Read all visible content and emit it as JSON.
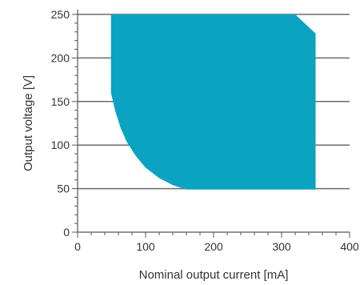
{
  "chart_data": {
    "type": "area",
    "xlabel": "Nominal output current [mA]",
    "ylabel": "Output voltage [V]",
    "xlim": [
      0,
      400
    ],
    "ylim": [
      0,
      250
    ],
    "x_ticks": [
      0,
      100,
      200,
      300,
      400
    ],
    "y_ticks": [
      0,
      50,
      100,
      150,
      200,
      250
    ],
    "grid": "horizontal",
    "fill_color": "#0aa3c2",
    "region": [
      {
        "x": 49,
        "y": 250
      },
      {
        "x": 320,
        "y": 250
      },
      {
        "x": 350,
        "y": 228
      },
      {
        "x": 350,
        "y": 49
      },
      {
        "x": 160,
        "y": 49
      },
      {
        "x": 140,
        "y": 54
      },
      {
        "x": 120,
        "y": 62
      },
      {
        "x": 100,
        "y": 74
      },
      {
        "x": 85,
        "y": 88
      },
      {
        "x": 72,
        "y": 104
      },
      {
        "x": 63,
        "y": 120
      },
      {
        "x": 55,
        "y": 140
      },
      {
        "x": 49,
        "y": 160
      }
    ]
  }
}
